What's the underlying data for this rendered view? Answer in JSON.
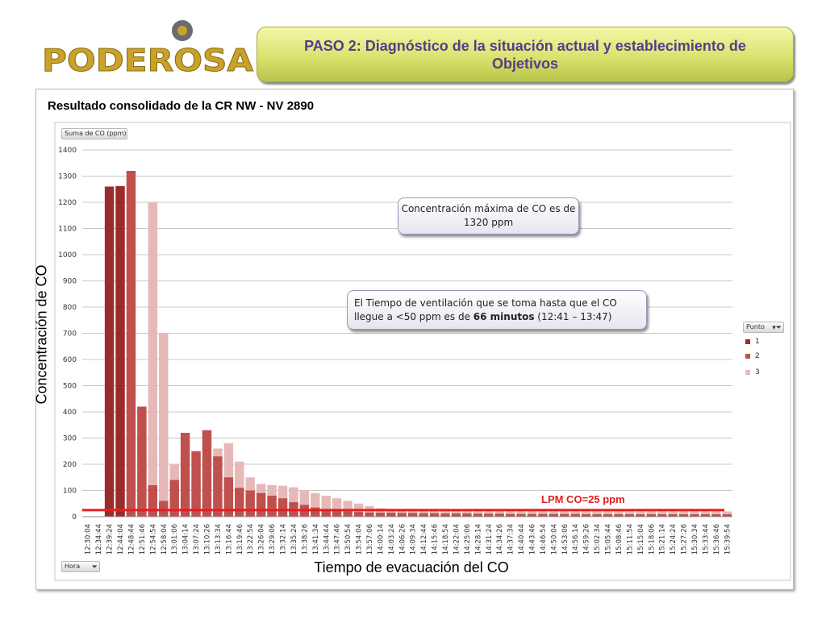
{
  "logo": {
    "text": "PODEROSA",
    "colors": {
      "letters": "#c9a22a",
      "dot": "#b08b1e",
      "ring": "#6b6b6b"
    }
  },
  "banner": {
    "title": "PASO 2: Diagnóstico de la situación actual y establecimiento de Objetivos",
    "color": "#5a3a8a"
  },
  "panel_title": "Resultado consolidado de la CR NW  - NV 2890",
  "callouts": {
    "max": "Concentración máxima de CO es de 1320 ppm",
    "vent_before": "El Tiempo de ventilación que se toma hasta que el CO llegue a <50 ppm es de ",
    "vent_bold": "66 minutos",
    "vent_after": " (12:41 – 13:47)"
  },
  "pivot": {
    "value_field": "Suma de  CO (ppm)",
    "legend_field": "Punto",
    "axis_field": "Hora",
    "filter_icon": "funnel-icon"
  },
  "chart_data": {
    "type": "bar",
    "ylabel": "Concentración de CO",
    "xlabel": "Tiempo de evacuación del CO",
    "ylim": [
      0,
      1400
    ],
    "yticks": [
      0,
      100,
      200,
      300,
      400,
      500,
      600,
      700,
      800,
      900,
      1000,
      1100,
      1200,
      1300,
      1400
    ],
    "grid": true,
    "legend_position": "right",
    "categories": [
      "12:30:04",
      "12:34:44",
      "12:39:24",
      "12:44:04",
      "12:48:44",
      "12:51:46",
      "12:54:54",
      "12:58:04",
      "13:01:06",
      "13:04:14",
      "13:07:24",
      "13:10:26",
      "13:13:34",
      "13:16:44",
      "13:19:46",
      "13:22:54",
      "13:26:04",
      "13:29:06",
      "13:32:14",
      "13:35:24",
      "13:38:26",
      "13:41:34",
      "13:44:44",
      "13:47:46",
      "13:50:54",
      "13:54:04",
      "13:57:06",
      "14:00:14",
      "14:03:24",
      "14:06:26",
      "14:09:34",
      "14:12:44",
      "14:15:46",
      "14:18:54",
      "14:22:04",
      "14:25:06",
      "14:28:14",
      "14:31:24",
      "14:34:26",
      "14:37:34",
      "14:40:44",
      "14:43:46",
      "14:46:54",
      "14:50:04",
      "14:53:06",
      "14:56:14",
      "14:59:26",
      "15:02:34",
      "15:05:44",
      "15:08:46",
      "15:11:54",
      "15:15:04",
      "15:18:06",
      "15:21:14",
      "15:24:24",
      "15:27:26",
      "15:30:34",
      "15:33:44",
      "15:36:46",
      "15:39:54"
    ],
    "series": [
      {
        "name": "1",
        "color": "#9b2b2b",
        "values": [
          0,
          0,
          1260,
          1262,
          0,
          0,
          0,
          0,
          0,
          0,
          0,
          0,
          0,
          0,
          0,
          0,
          0,
          0,
          0,
          0,
          0,
          0,
          0,
          0,
          0,
          0,
          0,
          0,
          0,
          0,
          0,
          0,
          0,
          0,
          0,
          0,
          0,
          0,
          0,
          0,
          0,
          0,
          0,
          0,
          0,
          0,
          0,
          0,
          0,
          0,
          0,
          0,
          0,
          0,
          0,
          0,
          0,
          0,
          0,
          0
        ]
      },
      {
        "name": "2",
        "color": "#c0504d",
        "values": [
          0,
          0,
          0,
          0,
          1320,
          420,
          120,
          60,
          140,
          320,
          250,
          330,
          230,
          150,
          110,
          100,
          90,
          80,
          70,
          55,
          45,
          35,
          28,
          22,
          20,
          18,
          16,
          15,
          15,
          14,
          14,
          13,
          13,
          12,
          12,
          12,
          11,
          11,
          11,
          10,
          10,
          10,
          10,
          10,
          10,
          10,
          9,
          9,
          9,
          9,
          9,
          9,
          9,
          9,
          9,
          9,
          9,
          9,
          9,
          9
        ]
      },
      {
        "name": "3",
        "color": "#e6b9b8",
        "values": [
          0,
          0,
          0,
          0,
          0,
          300,
          1200,
          700,
          200,
          80,
          150,
          230,
          260,
          280,
          210,
          150,
          125,
          120,
          118,
          112,
          100,
          90,
          80,
          70,
          60,
          50,
          40,
          32,
          28,
          26,
          24,
          22,
          22,
          21,
          21,
          20,
          20,
          20,
          20,
          20,
          20,
          20,
          20,
          20,
          20,
          20,
          20,
          20,
          20,
          20,
          20,
          20,
          20,
          20,
          20,
          20,
          20,
          20,
          20,
          20
        ]
      }
    ],
    "reference_line": {
      "value": 25,
      "label": "LPM CO=25 ppm",
      "color": "#e02020"
    }
  }
}
